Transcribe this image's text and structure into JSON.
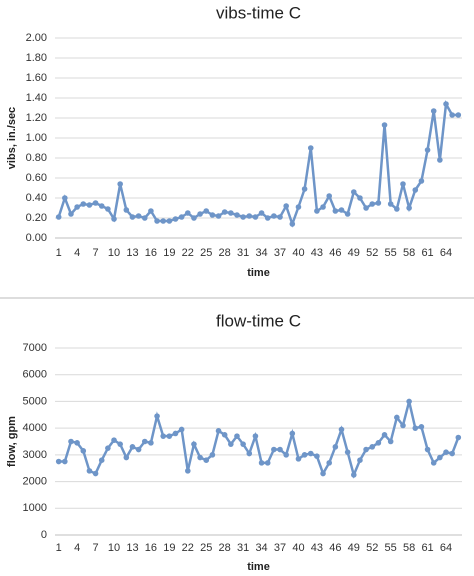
{
  "chart_data": [
    {
      "type": "line",
      "title": "vibs-time C",
      "x_label": "time",
      "y_label": "vibs, in./sec",
      "x": [
        1,
        2,
        3,
        4,
        5,
        6,
        7,
        8,
        9,
        10,
        11,
        12,
        13,
        14,
        15,
        16,
        17,
        18,
        19,
        20,
        21,
        22,
        23,
        24,
        25,
        26,
        27,
        28,
        29,
        30,
        31,
        32,
        33,
        34,
        35,
        36,
        37,
        38,
        39,
        40,
        41,
        42,
        43,
        44,
        45,
        46,
        47,
        48,
        49,
        50,
        51,
        52,
        53,
        54,
        55,
        56,
        57,
        58,
        59,
        60,
        61,
        62,
        63,
        64,
        65,
        66
      ],
      "series": [
        {
          "name": "vibs",
          "color": "#6e95c8",
          "values": [
            0.21,
            0.4,
            0.24,
            0.31,
            0.34,
            0.33,
            0.35,
            0.32,
            0.29,
            0.19,
            0.54,
            0.28,
            0.21,
            0.22,
            0.2,
            0.27,
            0.17,
            0.17,
            0.17,
            0.19,
            0.21,
            0.25,
            0.2,
            0.24,
            0.27,
            0.23,
            0.22,
            0.26,
            0.25,
            0.23,
            0.21,
            0.22,
            0.21,
            0.25,
            0.2,
            0.22,
            0.21,
            0.32,
            0.14,
            0.31,
            0.49,
            0.9,
            0.27,
            0.31,
            0.42,
            0.27,
            0.28,
            0.24,
            0.46,
            0.4,
            0.3,
            0.34,
            0.35,
            1.13,
            0.34,
            0.29,
            0.54,
            0.3,
            0.48,
            0.57,
            0.88,
            1.27,
            0.78,
            1.34,
            1.23,
            1.23
          ]
        }
      ],
      "xlim": [
        0.4,
        66.6
      ],
      "xticks": [
        1,
        4,
        7,
        10,
        13,
        16,
        19,
        22,
        25,
        28,
        31,
        34,
        37,
        40,
        43,
        46,
        49,
        52,
        55,
        58,
        61,
        64
      ],
      "ylim": [
        0,
        2
      ],
      "yticks": [
        {
          "value": 0,
          "label": "0.00"
        },
        {
          "value": 0.2,
          "label": "0.20"
        },
        {
          "value": 0.4,
          "label": "0.40"
        },
        {
          "value": 0.6,
          "label": "0.60"
        },
        {
          "value": 0.8,
          "label": "0.80"
        },
        {
          "value": 1,
          "label": "1.00"
        },
        {
          "value": 1.2,
          "label": "1.20"
        },
        {
          "value": 1.4,
          "label": "1.40"
        },
        {
          "value": 1.6,
          "label": "1.60"
        },
        {
          "value": 1.8,
          "label": "1.80"
        },
        {
          "value": 2,
          "label": "2.00"
        }
      ],
      "grid": true
    },
    {
      "type": "line",
      "title": "flow-time C",
      "x_label": "time",
      "y_label": "flow, gpm",
      "x": [
        1,
        2,
        3,
        4,
        5,
        6,
        7,
        8,
        9,
        10,
        11,
        12,
        13,
        14,
        15,
        16,
        17,
        18,
        19,
        20,
        21,
        22,
        23,
        24,
        25,
        26,
        27,
        28,
        29,
        30,
        31,
        32,
        33,
        34,
        35,
        36,
        37,
        38,
        39,
        40,
        41,
        42,
        43,
        44,
        45,
        46,
        47,
        48,
        49,
        50,
        51,
        52,
        53,
        54,
        55,
        56,
        57,
        58,
        59,
        60,
        61,
        62,
        63,
        64,
        65,
        66
      ],
      "series": [
        {
          "name": "flow",
          "color": "#6e95c8",
          "values": [
            2750,
            2750,
            3500,
            3450,
            3150,
            2400,
            2300,
            2800,
            3250,
            3550,
            3400,
            2900,
            3300,
            3200,
            3500,
            3450,
            4450,
            3700,
            3700,
            3800,
            3950,
            2400,
            3400,
            2900,
            2800,
            3000,
            3900,
            3750,
            3400,
            3700,
            3400,
            3050,
            3700,
            2700,
            2700,
            3200,
            3200,
            3000,
            3800,
            2850,
            3000,
            3050,
            2950,
            2300,
            2700,
            3300,
            3950,
            3100,
            2250,
            2800,
            3200,
            3300,
            3450,
            3750,
            3500,
            4400,
            4100,
            5000,
            4000,
            4050,
            3200,
            2700,
            2900,
            3100,
            3050,
            3650
          ]
        }
      ],
      "xlim": [
        0.4,
        66.6
      ],
      "xticks": [
        1,
        4,
        7,
        10,
        13,
        16,
        19,
        22,
        25,
        28,
        31,
        34,
        37,
        40,
        43,
        46,
        49,
        52,
        55,
        58,
        61,
        64
      ],
      "ylim": [
        0,
        7000
      ],
      "yticks": [
        0,
        1000,
        2000,
        3000,
        4000,
        5000,
        6000,
        7000
      ],
      "grid": true
    }
  ]
}
